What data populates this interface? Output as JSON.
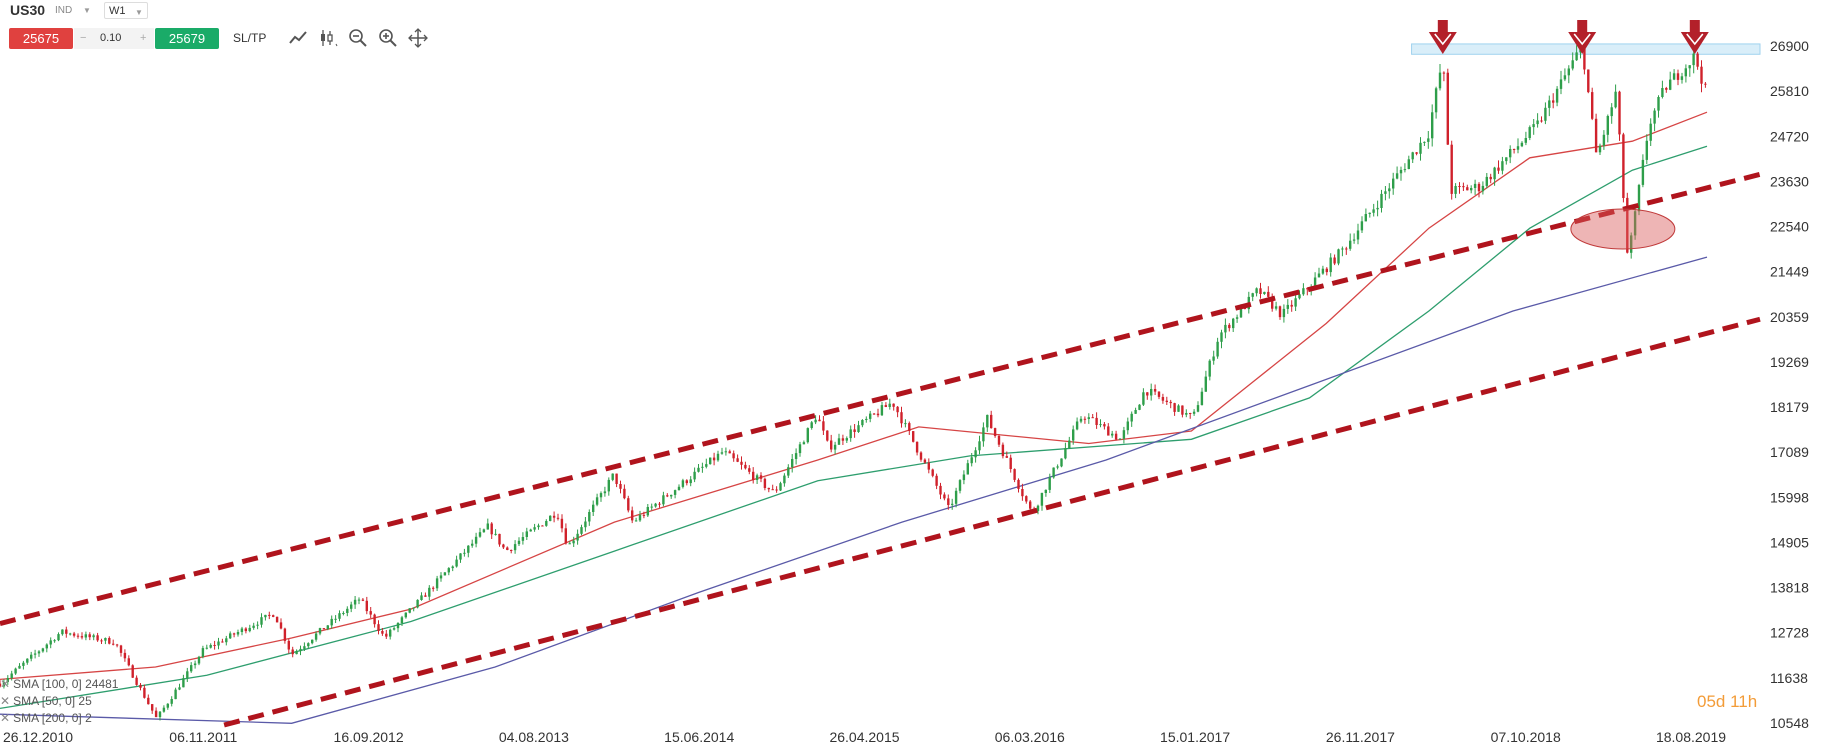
{
  "header": {
    "symbol": "US30",
    "symbol_type": "IND",
    "timeframe": "W1",
    "sell_price": "25675",
    "volume": "0.10",
    "volume_minus": "−",
    "volume_plus": "+",
    "buy_price": "25679",
    "sltp_label": "SL/TP",
    "tools": [
      "line-chart-icon",
      "candlestick-icon",
      "zoom-out-icon",
      "zoom-in-icon",
      "crosshair-icon"
    ]
  },
  "legend": [
    {
      "label": "SMA [100, 0] 24481",
      "color": "#2e9e6e"
    },
    {
      "label": "SMA [50, 0] 25",
      "color": "#d64545"
    },
    {
      "label": "SMA [200, 0] 2",
      "color": "#5a5aa8"
    }
  ],
  "countdown": {
    "days": "05d",
    "hours": "11h"
  },
  "colors": {
    "bull": "#2e9e4a",
    "bear": "#d0212b",
    "sma50": "#d64545",
    "sma100": "#2e9e6e",
    "sma200": "#5a5aa8",
    "trendline": "#b0141d",
    "resistance_zone": "#bfe3f5",
    "arrow": "#b3202a",
    "ellipse": "#d95a5a"
  },
  "chart_data": {
    "type": "candlestick",
    "instrument": "US30",
    "timeframe": "W1",
    "y_ticks": [
      26900,
      25810,
      24720,
      23630,
      22540,
      21449,
      20359,
      19269,
      18179,
      17089,
      15998,
      14905,
      13818,
      12728,
      11638,
      10548
    ],
    "ylim": [
      10548,
      26900
    ],
    "x_tick_labels": [
      "26.12.2010",
      "06.11.2011",
      "16.09.2012",
      "04.08.2013",
      "15.06.2014",
      "26.04.2015",
      "06.03.2016",
      "15.01.2017",
      "26.11.2017",
      "07.10.2018",
      "18.08.2019"
    ],
    "xlim": [
      "2010-12-26",
      "2019-08-18"
    ],
    "price_path": [
      [
        "2010-12-26",
        11500
      ],
      [
        "2011-04-15",
        12750
      ],
      [
        "2011-07-20",
        12500
      ],
      [
        "2011-10-03",
        10650
      ],
      [
        "2011-12-25",
        12300
      ],
      [
        "2012-05-01",
        13200
      ],
      [
        "2012-06-01",
        12200
      ],
      [
        "2012-10-01",
        13550
      ],
      [
        "2012-11-15",
        12600
      ],
      [
        "2013-05-20",
        15300
      ],
      [
        "2013-06-20",
        14700
      ],
      [
        "2013-09-20",
        15650
      ],
      [
        "2013-10-10",
        14800
      ],
      [
        "2013-12-31",
        16550
      ],
      [
        "2014-02-03",
        15400
      ],
      [
        "2014-07-15",
        17100
      ],
      [
        "2014-10-15",
        16100
      ],
      [
        "2014-12-30",
        18000
      ],
      [
        "2015-01-20",
        17200
      ],
      [
        "2015-05-15",
        18300
      ],
      [
        "2015-08-24",
        15700
      ],
      [
        "2015-11-01",
        17900
      ],
      [
        "2016-01-20",
        15600
      ],
      [
        "2016-04-20",
        18000
      ],
      [
        "2016-06-27",
        17400
      ],
      [
        "2016-08-10",
        18600
      ],
      [
        "2016-11-04",
        17900
      ],
      [
        "2016-12-20",
        19900
      ],
      [
        "2017-03-01",
        21000
      ],
      [
        "2017-04-13",
        20400
      ],
      [
        "2017-08-01",
        22000
      ],
      [
        "2017-12-31",
        24800
      ],
      [
        "2018-01-26",
        26600
      ],
      [
        "2018-02-09",
        23400
      ],
      [
        "2018-04-02",
        23500
      ],
      [
        "2018-07-15",
        25000
      ],
      [
        "2018-10-03",
        26900
      ],
      [
        "2018-10-29",
        24200
      ],
      [
        "2018-12-03",
        25800
      ],
      [
        "2018-12-24",
        21700
      ],
      [
        "2019-01-31",
        25000
      ],
      [
        "2019-03-01",
        25900
      ],
      [
        "2019-04-23",
        26650
      ],
      [
        "2019-05-15",
        25700
      ]
    ],
    "sma": [
      {
        "name": "SMA [100, 0]",
        "color": "#2e9e6e",
        "points": [
          [
            "2010-12-26",
            10900
          ],
          [
            "2012-01-01",
            11700
          ],
          [
            "2013-01-01",
            13000
          ],
          [
            "2014-01-01",
            14700
          ],
          [
            "2015-01-01",
            16400
          ],
          [
            "2015-10-01",
            17000
          ],
          [
            "2016-11-01",
            17400
          ],
          [
            "2017-06-01",
            18400
          ],
          [
            "2018-01-01",
            20500
          ],
          [
            "2018-07-01",
            22500
          ],
          [
            "2019-01-01",
            23900
          ],
          [
            "2019-05-15",
            24481
          ]
        ]
      },
      {
        "name": "SMA [50, 0]",
        "color": "#d64545",
        "points": [
          [
            "2010-12-26",
            11600
          ],
          [
            "2011-10-01",
            11900
          ],
          [
            "2012-06-01",
            12600
          ],
          [
            "2013-01-01",
            13300
          ],
          [
            "2014-01-01",
            15400
          ],
          [
            "2015-01-01",
            16900
          ],
          [
            "2015-07-01",
            17700
          ],
          [
            "2016-05-01",
            17300
          ],
          [
            "2016-11-01",
            17600
          ],
          [
            "2017-07-01",
            20200
          ],
          [
            "2018-01-01",
            22500
          ],
          [
            "2018-07-01",
            24200
          ],
          [
            "2019-01-01",
            24600
          ],
          [
            "2019-05-15",
            25300
          ]
        ]
      },
      {
        "name": "SMA [200, 0]",
        "color": "#5a5aa8",
        "points": [
          [
            "2010-12-26",
            10760
          ],
          [
            "2012-06-01",
            10540
          ],
          [
            "2013-06-01",
            11900
          ],
          [
            "2014-06-01",
            13700
          ],
          [
            "2015-06-01",
            15400
          ],
          [
            "2016-06-01",
            16900
          ],
          [
            "2017-06-01",
            18700
          ],
          [
            "2018-06-01",
            20500
          ],
          [
            "2019-05-15",
            21800
          ]
        ]
      }
    ],
    "annotations": {
      "upper_trendline": [
        [
          "2010-12-26",
          12950
        ],
        [
          "2019-08-18",
          23800
        ]
      ],
      "lower_trendline": [
        [
          "2012-02-01",
          10500
        ],
        [
          "2019-08-18",
          20300
        ]
      ],
      "resistance_zone": {
        "from": "2017-12-01",
        "to": "2019-08-18",
        "y_low": 26700,
        "y_high": 26950
      },
      "arrows": [
        "2018-01-26",
        "2018-10-03",
        "2019-04-23"
      ],
      "ellipse": {
        "center": "2018-12-15",
        "y": 22480
      }
    },
    "grid": false,
    "legend_position": "bottom-left"
  }
}
